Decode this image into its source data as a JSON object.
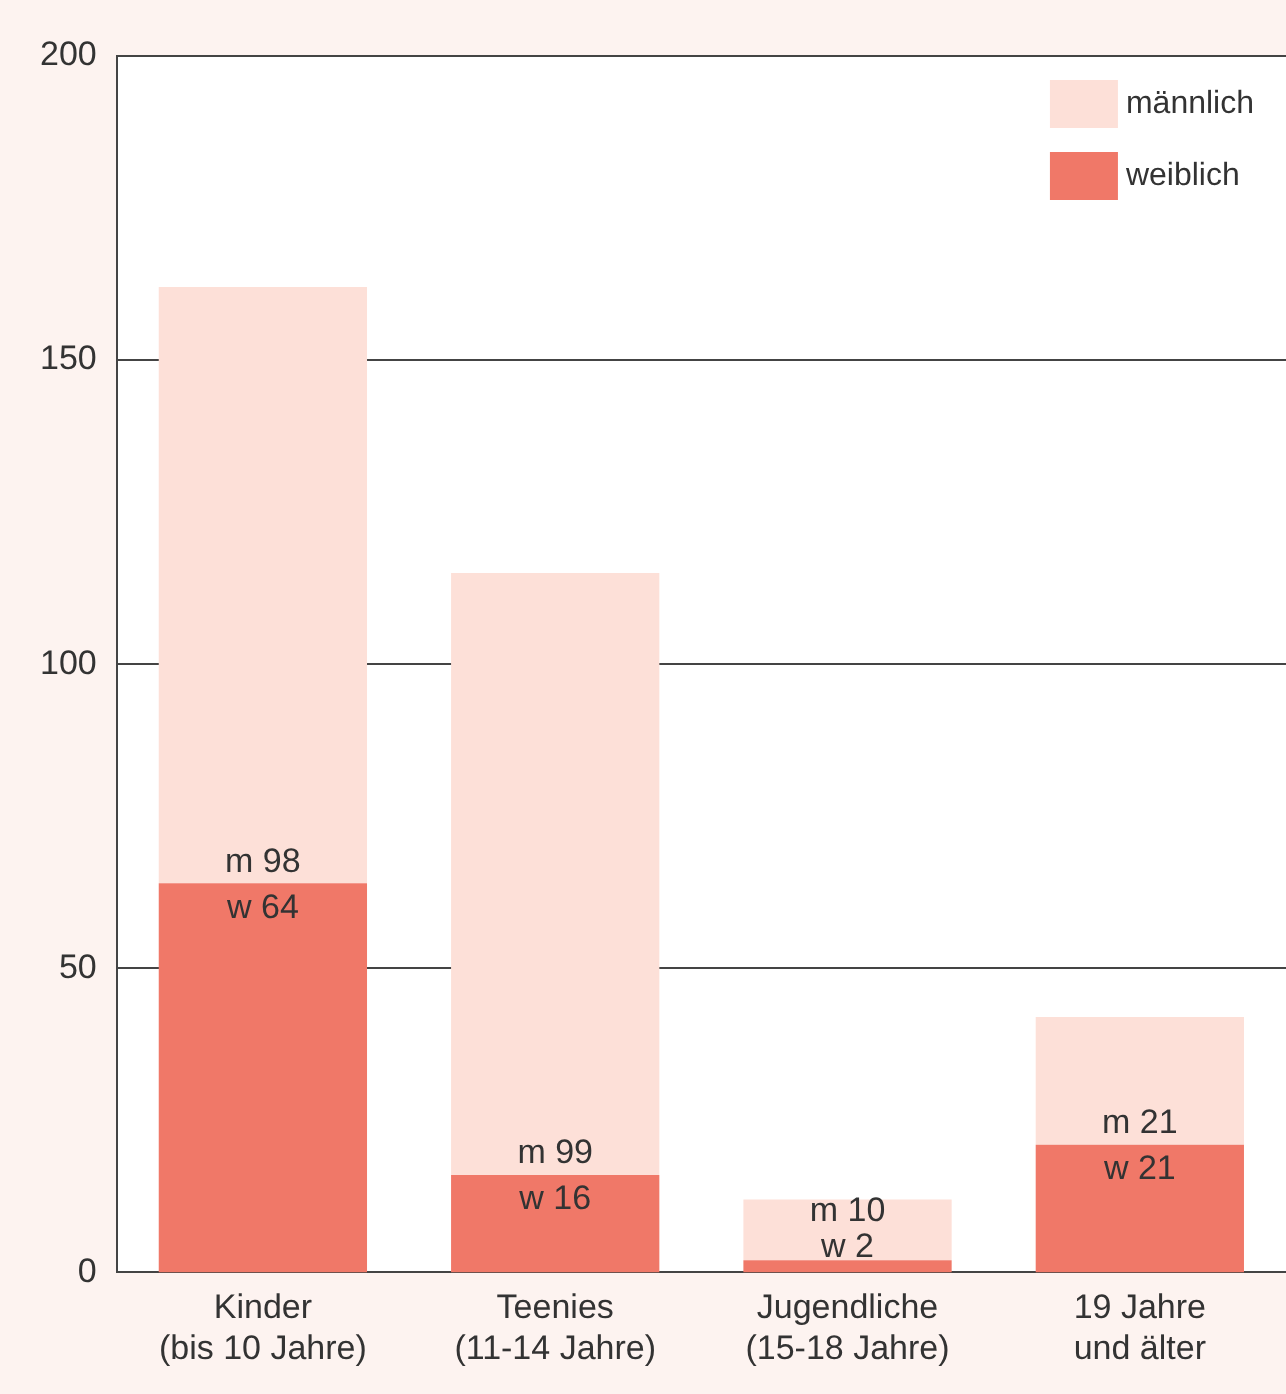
{
  "chart_data": {
    "type": "bar",
    "stacked": true,
    "categories": [
      "Kinder\n(bis 10 Jahre)",
      "Teenies\n(11-14 Jahre)",
      "Jugendliche\n(15-18 Jahre)",
      "19 Jahre\nund älter"
    ],
    "series": [
      {
        "name": "weiblich",
        "color": "#f07868",
        "values": [
          64,
          16,
          2,
          21
        ],
        "value_labels": [
          "w 64",
          "w 16",
          "w 2",
          "w 21"
        ]
      },
      {
        "name": "männlich",
        "color": "#fde0d8",
        "values": [
          98,
          99,
          10,
          21
        ],
        "value_labels": [
          "m 98",
          "m 99",
          "m 10",
          "m 21"
        ]
      }
    ],
    "ylim": [
      0,
      200
    ],
    "yticks": [
      0,
      50,
      100,
      150,
      200
    ],
    "grid": "y",
    "legend": "top right"
  }
}
